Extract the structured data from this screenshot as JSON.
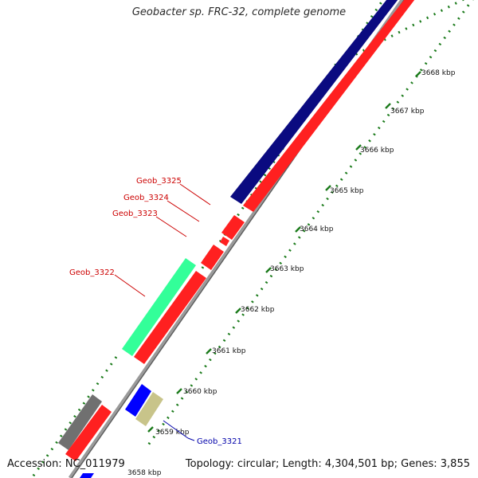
{
  "title": "Geobacter sp. FRC-32, complete genome",
  "footer": {
    "accession": "Accession: NC_011979",
    "stats": "Topology: circular; Length: 4,304,501 bp; Genes: 3,855"
  },
  "ticks": [
    "3658 kbp",
    "3659 kbp",
    "3660 kbp",
    "3661 kbp",
    "3662 kbp",
    "3663 kbp",
    "3664 kbp",
    "3665 kbp",
    "3666 kbp",
    "3667 kbp",
    "3668 kbp"
  ],
  "gene_labels": [
    {
      "name": "Geob_3325",
      "color": "#cc0000"
    },
    {
      "name": "Geob_3324",
      "color": "#cc0000"
    },
    {
      "name": "Geob_3323",
      "color": "#cc0000"
    },
    {
      "name": "Geob_3322",
      "color": "#cc0000"
    },
    {
      "name": "Geob_3321",
      "color": "#0000aa"
    }
  ],
  "colors": {
    "tick_green": "#1a7a1a",
    "navy": "#0a0a80",
    "red": "#ff0000",
    "teal_green": "#33ff99",
    "grey": "#707070",
    "blue": "#0000ff",
    "khaki": "#c8c48a",
    "backbone": "#808080"
  }
}
